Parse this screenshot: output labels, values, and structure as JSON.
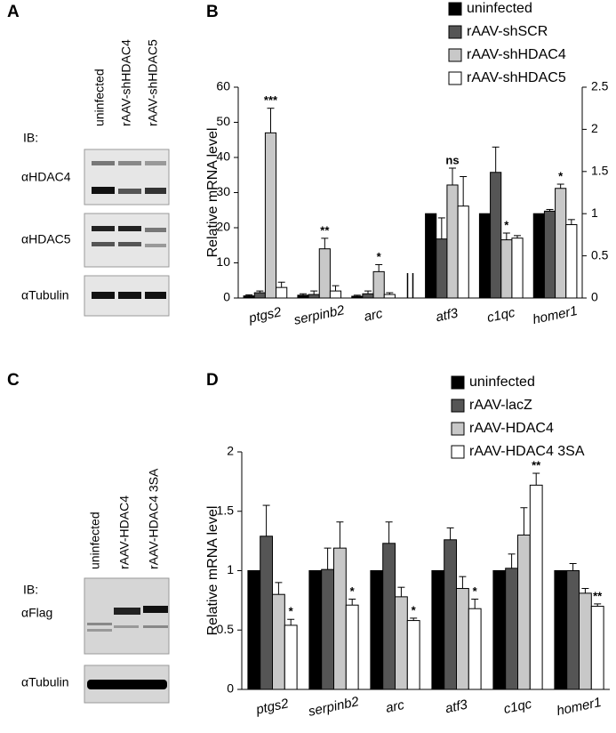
{
  "panel_labels": [
    "A",
    "B",
    "C",
    "D"
  ],
  "blots": [
    {
      "ib": "IB:",
      "lanes": [
        "uninfected",
        "rAAV-shHDAC4",
        "rAAV-shHDAC5"
      ],
      "rows": [
        "αHDAC4",
        "αHDAC5",
        "αTubulin"
      ]
    },
    {
      "ib": "IB:",
      "lanes": [
        "uninfected",
        "rAAV-HDAC4",
        "rAAV-HDAC4 3SA"
      ],
      "rows": [
        "αFlag",
        "αTubulin"
      ]
    }
  ],
  "chart_data": [
    {
      "type": "bar",
      "ylabel": "Relative mRNA level",
      "categories": [
        "ptgs2",
        "serpinb2",
        "arc",
        "atf3",
        "c1qc",
        "homer1"
      ],
      "category_axis": [
        "y",
        "y",
        "y",
        "y2",
        "y2",
        "y2"
      ],
      "ylim": [
        0,
        60
      ],
      "yticks": [
        0,
        10,
        20,
        30,
        40,
        50,
        60
      ],
      "y2lim": [
        0,
        2.5
      ],
      "y2ticks": [
        0,
        0.5,
        1,
        1.5,
        2,
        2.5
      ],
      "series": [
        {
          "name": "uninfected",
          "color": "#000000",
          "values": [
            0.6,
            0.8,
            0.5,
            1.0,
            1.0,
            1.0
          ],
          "errors": [
            0.3,
            0.4,
            0.3,
            0,
            0,
            0
          ],
          "annotations": [
            null,
            null,
            null,
            null,
            null,
            null
          ]
        },
        {
          "name": "rAAV-shSCR",
          "color": "#555555",
          "values": [
            1.5,
            1.0,
            1.2,
            0.7,
            1.49,
            1.03
          ],
          "errors": [
            0.5,
            1.0,
            0.8,
            0.25,
            0.3,
            0.02
          ],
          "annotations": [
            null,
            null,
            null,
            null,
            null,
            null
          ]
        },
        {
          "name": "rAAV-shHDAC4",
          "color": "#c8c8c8",
          "values": [
            47,
            14,
            7.5,
            1.34,
            0.69,
            1.3
          ],
          "errors": [
            7,
            3,
            2,
            0.2,
            0.08,
            0.05
          ],
          "annotations": [
            "***",
            "**",
            "*",
            "ns",
            "*",
            "*"
          ]
        },
        {
          "name": "rAAV-shHDAC5",
          "color": "#ffffff",
          "values": [
            3,
            2,
            1,
            1.09,
            0.71,
            0.87
          ],
          "errors": [
            1.5,
            1.5,
            0.5,
            0.35,
            0.03,
            0.06
          ],
          "annotations": [
            null,
            null,
            null,
            null,
            null,
            null
          ]
        }
      ]
    },
    {
      "type": "bar",
      "ylabel": "Relative mRNA level",
      "categories": [
        "ptgs2",
        "serpinb2",
        "arc",
        "atf3",
        "c1qc",
        "homer1"
      ],
      "ylim": [
        0,
        2
      ],
      "yticks": [
        0,
        0.5,
        1,
        1.5,
        2
      ],
      "series": [
        {
          "name": "uninfected",
          "color": "#000000",
          "values": [
            1,
            1,
            1,
            1,
            1,
            1
          ],
          "errors": [
            0,
            0,
            0,
            0,
            0,
            0
          ],
          "annotations": [
            null,
            null,
            null,
            null,
            null,
            null
          ]
        },
        {
          "name": "rAAV-lacZ",
          "color": "#555555",
          "values": [
            1.29,
            1.01,
            1.23,
            1.26,
            1.02,
            1.0
          ],
          "errors": [
            0.26,
            0.18,
            0.18,
            0.1,
            0.12,
            0.06
          ],
          "annotations": [
            null,
            null,
            null,
            null,
            null,
            null
          ]
        },
        {
          "name": "rAAV-HDAC4",
          "color": "#c8c8c8",
          "values": [
            0.8,
            1.19,
            0.78,
            0.85,
            1.3,
            0.81
          ],
          "errors": [
            0.1,
            0.22,
            0.08,
            0.1,
            0.23,
            0.04
          ],
          "annotations": [
            null,
            null,
            null,
            null,
            null,
            null
          ]
        },
        {
          "name": "rAAV-HDAC4 3SA",
          "color": "#ffffff",
          "values": [
            0.54,
            0.71,
            0.58,
            0.68,
            1.72,
            0.7
          ],
          "errors": [
            0.05,
            0.05,
            0.02,
            0.08,
            0.1,
            0.02
          ],
          "annotations": [
            "*",
            "*",
            "*",
            "*",
            "**",
            "**"
          ]
        }
      ]
    }
  ]
}
